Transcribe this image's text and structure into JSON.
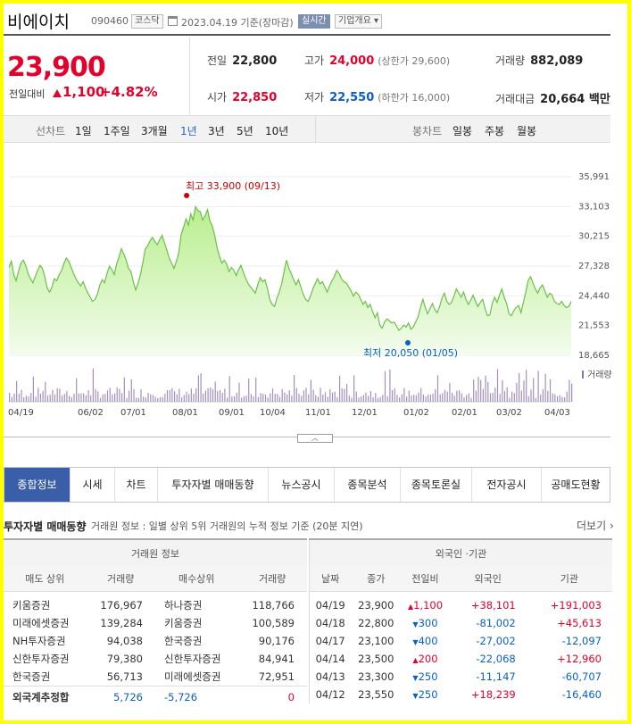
{
  "header": {
    "name": "비에이치",
    "code": "090460",
    "market": "코스닥",
    "date": "2023.04.19 기준(장마감)",
    "realtime": "실시간",
    "info": "기업개요"
  },
  "quote": {
    "price": "23,900",
    "change_label": "전일대비",
    "change": "1,100",
    "change_pct": "+4.82%",
    "prev_label": "전일",
    "prev": "22,800",
    "high_label": "고가",
    "high": "24,000",
    "upper_limit": "(상한가 29,600)",
    "volume_label": "거래량",
    "volume": "882,089",
    "open_label": "시가",
    "open": "22,850",
    "low_label": "저가",
    "low": "22,550",
    "lower_limit": "(하한가 16,000)",
    "amount_label": "거래대금",
    "amount": "20,664 백만"
  },
  "range_tabs": {
    "line_label": "선차트",
    "line": [
      "1일",
      "1주일",
      "3개월",
      "1년",
      "3년",
      "5년",
      "10년"
    ],
    "active": "1년",
    "candle_label": "봉차트",
    "candle": [
      "일봉",
      "주봉",
      "월봉"
    ]
  },
  "chart_data": {
    "type": "area",
    "y_ticks": [
      "35,991",
      "33,103",
      "30,215",
      "27,328",
      "24,440",
      "21,553",
      "18,665"
    ],
    "ylim": [
      18665,
      35991
    ],
    "x_labels": [
      "04/19",
      "06/02",
      "07/01",
      "08/01",
      "09/01",
      "10/04",
      "11/01",
      "12/01",
      "01/02",
      "02/01",
      "03/02",
      "04/03"
    ],
    "values": [
      27200,
      27800,
      26500,
      25900,
      26800,
      27600,
      27900,
      27400,
      26600,
      26100,
      25700,
      26300,
      26900,
      27400,
      27100,
      26300,
      25200,
      24800,
      25300,
      26100,
      25900,
      26500,
      26900,
      27600,
      28100,
      27800,
      27200,
      26600,
      26100,
      25700,
      25400,
      25800,
      25200,
      24700,
      24300,
      23900,
      24100,
      24600,
      25500,
      26000,
      25700,
      26600,
      27300,
      27000,
      26500,
      27500,
      28200,
      29000,
      28500,
      27900,
      27100,
      26800,
      25800,
      25000,
      25700,
      26500,
      27700,
      29000,
      29300,
      29800,
      30100,
      29700,
      29400,
      29900,
      30300,
      29600,
      28900,
      28100,
      27600,
      27100,
      27800,
      28600,
      30400,
      31100,
      31900,
      31300,
      32400,
      31800,
      33100,
      32700,
      32600,
      31800,
      32200,
      32800,
      31700,
      31200,
      30300,
      29100,
      28300,
      27600,
      27900,
      27500,
      26800,
      27200,
      26900,
      26400,
      27000,
      27400,
      26700,
      26100,
      25600,
      25300,
      25000,
      24700,
      25500,
      26200,
      25800,
      26000,
      25200,
      24100,
      23600,
      23400,
      24200,
      24800,
      25600,
      26800,
      27900,
      27100,
      26600,
      26000,
      25500,
      26000,
      25300,
      24600,
      24100,
      23900,
      24400,
      25100,
      25600,
      26100,
      25600,
      25800,
      25300,
      24800,
      25400,
      25900,
      26300,
      26900,
      26600,
      26100,
      25800,
      25700,
      25300,
      24900,
      24400,
      24800,
      24600,
      24100,
      23600,
      23900,
      23300,
      23600,
      22900,
      22300,
      22800,
      21600,
      21300,
      21900,
      22200,
      22000,
      21800,
      21900,
      21500,
      21100,
      21300,
      21600,
      21400,
      21800,
      21200,
      21400,
      21900,
      22400,
      23300,
      24100,
      23300,
      22700,
      23200,
      23700,
      23100,
      22800,
      23400,
      24200,
      24700,
      23900,
      23600,
      23800,
      24400,
      25100,
      24700,
      24300,
      24800,
      24100,
      23600,
      24000,
      24500,
      23900,
      23400,
      23800,
      24100,
      23200,
      22500,
      22600,
      23700,
      24300,
      23800,
      24500,
      25100,
      24300,
      23700,
      22700,
      22500,
      23000,
      23300,
      23500,
      22800,
      23800,
      24800,
      25900,
      26300,
      25700,
      25100,
      24700,
      25200,
      25500,
      24900,
      24300,
      24700,
      24500,
      23900,
      23700,
      23600,
      23900,
      23500,
      23300,
      23400,
      23900
    ],
    "max_annotation": "최고 33,900 (09/13)",
    "min_annotation": "최저 20,050 (01/05)",
    "volume_label": "거래량"
  },
  "tabs": [
    "종합정보",
    "시세",
    "차트",
    "투자자별 매매동향",
    "뉴스공시",
    "종목분석",
    "종목토론실",
    "전자공시",
    "공매도현황"
  ],
  "active_tab": "종합정보",
  "section": {
    "title": "투자자별 매매동향",
    "desc": "거래원 정보 : 일별 상위 5위 거래원의 누적 정보 기준 (20분 지연)",
    "more": "더보기"
  },
  "broker_table": {
    "title": "거래원 정보",
    "headers": [
      "매도 상위",
      "거래량",
      "매수상위",
      "거래량"
    ],
    "rows": [
      [
        "키움증권",
        "176,967",
        "하나증권",
        "118,766"
      ],
      [
        "미래에셋증권",
        "139,284",
        "키움증권",
        "100,589"
      ],
      [
        "NH투자증권",
        "94,038",
        "한국증권",
        "90,176"
      ],
      [
        "신한투자증권",
        "79,380",
        "신한투자증권",
        "84,941"
      ],
      [
        "한국증권",
        "56,713",
        "미래에셋증권",
        "72,951"
      ]
    ],
    "foreign_label": "외국계추정합",
    "foreign": [
      "5,726",
      "-5,726",
      "0"
    ]
  },
  "foreign_table": {
    "title": "외국인 ·기관",
    "headers": [
      "날짜",
      "종가",
      "전일비",
      "외국인",
      "기관"
    ],
    "rows": [
      {
        "date": "04/19",
        "close": "23,900",
        "dir": "up",
        "diff": "1,100",
        "foreign": "+38,101",
        "inst": "+191,003"
      },
      {
        "date": "04/18",
        "close": "22,800",
        "dir": "down",
        "diff": "300",
        "foreign": "-81,002",
        "inst": "+45,613"
      },
      {
        "date": "04/17",
        "close": "23,100",
        "dir": "down",
        "diff": "400",
        "foreign": "-27,002",
        "inst": "-12,097"
      },
      {
        "date": "04/14",
        "close": "23,500",
        "dir": "up",
        "diff": "200",
        "foreign": "-22,068",
        "inst": "+12,960"
      },
      {
        "date": "04/13",
        "close": "23,300",
        "dir": "down",
        "diff": "250",
        "foreign": "-11,147",
        "inst": "-60,707"
      },
      {
        "date": "04/12",
        "close": "23,550",
        "dir": "down",
        "diff": "250",
        "foreign": "+18,239",
        "inst": "-16,460"
      }
    ]
  },
  "colors": {
    "up": "#e4002b",
    "down": "#0b5fc8",
    "area": "#c8f0a8",
    "line": "#6cc04a",
    "tab_active": "#3a5fa8"
  }
}
